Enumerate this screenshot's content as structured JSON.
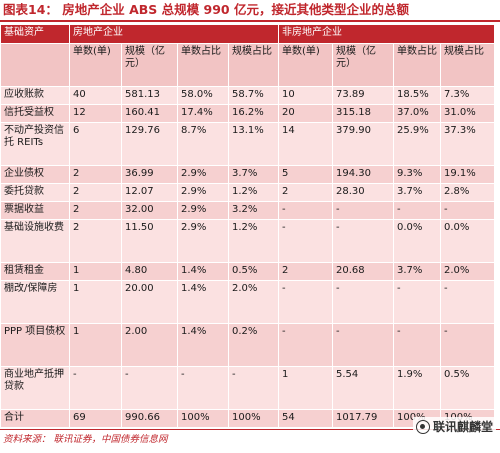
{
  "title": "图表14： 房地产企业 ABS 总规模 990 亿元，接近其他类型企业的总额",
  "table": {
    "group_header": {
      "first": "基础资产",
      "re": "房地产企业",
      "non_re": "非房地产企业"
    },
    "sub_header": [
      "",
      "单数(单)",
      "规模（亿元）",
      "单数占比",
      "规模占比",
      "单数(单)",
      "规模（亿元）",
      "单数占比",
      "规模占比"
    ],
    "rows": [
      [
        "应收账款",
        "40",
        "581.13",
        "58.0%",
        "58.7%",
        "10",
        "73.89",
        "18.5%",
        "7.3%"
      ],
      [
        "信托受益权",
        "12",
        "160.41",
        "17.4%",
        "16.2%",
        "20",
        "315.18",
        "37.0%",
        "31.0%"
      ],
      [
        "不动产投资信托 REITs",
        "6",
        "129.76",
        "8.7%",
        "13.1%",
        "14",
        "379.90",
        "25.9%",
        "37.3%"
      ],
      [
        "企业债权",
        "2",
        "36.99",
        "2.9%",
        "3.7%",
        "5",
        "194.30",
        "9.3%",
        "19.1%"
      ],
      [
        "委托贷款",
        "2",
        "12.07",
        "2.9%",
        "1.2%",
        "2",
        "28.30",
        "3.7%",
        "2.8%"
      ],
      [
        "票据收益",
        "2",
        "32.00",
        "2.9%",
        "3.2%",
        "-",
        "-",
        "-",
        "-"
      ],
      [
        "基础设施收费",
        "2",
        "11.50",
        "2.9%",
        "1.2%",
        "-",
        "-",
        "0.0%",
        "0.0%"
      ],
      [
        "租赁租金",
        "1",
        "4.80",
        "1.4%",
        "0.5%",
        "2",
        "20.68",
        "3.7%",
        "2.0%"
      ],
      [
        "棚改/保障房",
        "1",
        "20.00",
        "1.4%",
        "2.0%",
        "-",
        "-",
        "-",
        "-"
      ],
      [
        "PPP 项目债权",
        "1",
        "2.00",
        "1.4%",
        "0.2%",
        "-",
        "-",
        "-",
        "-"
      ],
      [
        "商业地产抵押贷款",
        "-",
        "-",
        "-",
        "-",
        "1",
        "5.54",
        "1.9%",
        "0.5%"
      ],
      [
        "合计",
        "69",
        "990.66",
        "100%",
        "100%",
        "54",
        "1017.79",
        "100%",
        "100%"
      ]
    ]
  },
  "footnote": "资料来源： 联讯证券，中国债券信息网",
  "watermark": "联讯麒麟堂",
  "colors": {
    "accent": "#c0272d",
    "header_sub": "#f2c4c4",
    "row_light": "#fbe1e1",
    "row_dark": "#f6d0d0"
  }
}
